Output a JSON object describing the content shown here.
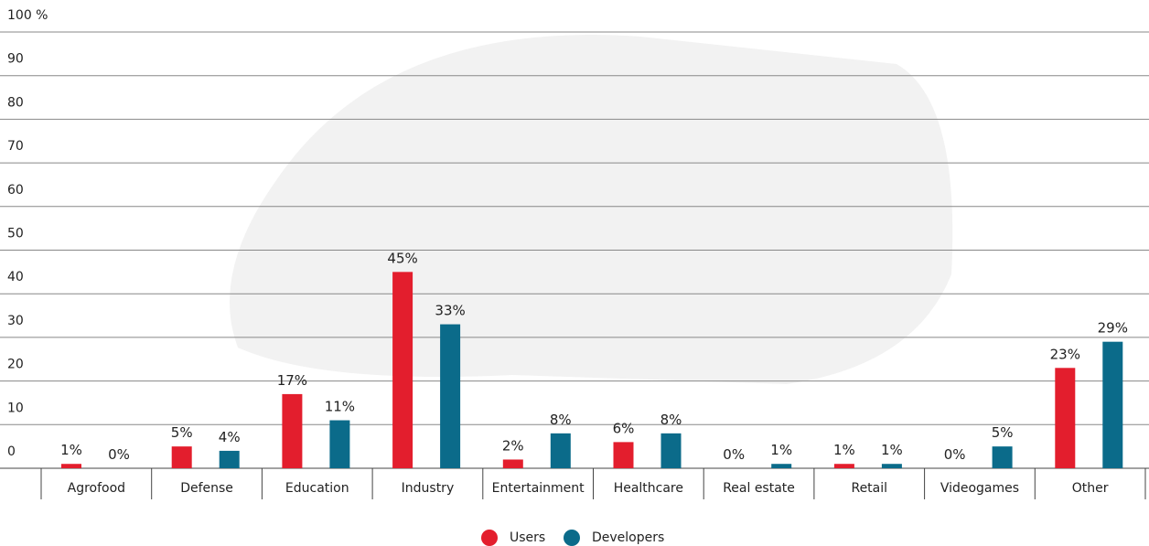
{
  "chart_data": {
    "type": "bar",
    "categories": [
      "Agrofood",
      "Defense",
      "Education",
      "Industry",
      "Entertainment",
      "Healthcare",
      "Real estate",
      "Retail",
      "Videogames",
      "Other"
    ],
    "series": [
      {
        "name": "Users",
        "color": "#e31e2d",
        "values": [
          1,
          5,
          17,
          45,
          2,
          6,
          0,
          1,
          0,
          23
        ],
        "value_labels": [
          "1%",
          "5%",
          "17%",
          "45%",
          "2%",
          "6%",
          "0%",
          "1%",
          "0%",
          "23%"
        ]
      },
      {
        "name": "Developers",
        "color": "#0b6b8a",
        "values": [
          0,
          4,
          11,
          33,
          8,
          8,
          1,
          1,
          5,
          29
        ],
        "value_labels": [
          "0%",
          "4%",
          "11%",
          "33%",
          "8%",
          "8%",
          "1%",
          "1%",
          "5%",
          "29%"
        ]
      }
    ],
    "ylim": [
      0,
      100
    ],
    "yticks": [
      0,
      10,
      20,
      30,
      40,
      50,
      60,
      70,
      80,
      90,
      {
        "value": 100,
        "label": "100 %"
      }
    ],
    "grid": true,
    "legend": "bottom"
  }
}
